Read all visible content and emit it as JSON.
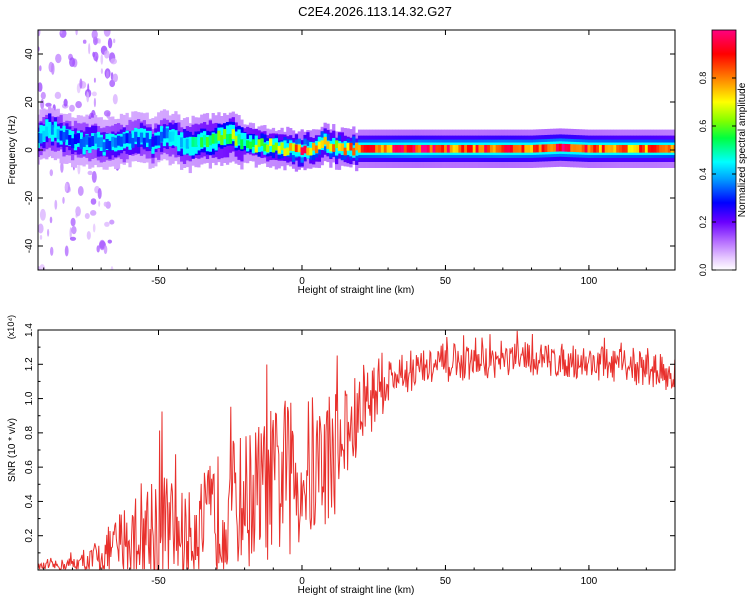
{
  "title": "C2E4.2026.113.14.32.G27",
  "chart_data": [
    {
      "type": "heatmap",
      "name": "spectrogram",
      "xlabel": "Height of straight line (km)",
      "ylabel": "Frequency (Hz)",
      "xlim": [
        -92,
        130
      ],
      "ylim": [
        -50,
        50
      ],
      "x_ticks": [
        -50,
        0,
        50,
        100
      ],
      "y_ticks": [
        40,
        20,
        0,
        -20,
        -40
      ],
      "y_tick_labels": [
        "40",
        "20",
        "0",
        "-20",
        "-40"
      ],
      "colorbar": {
        "label": "Normalized spectral amplitude",
        "range": [
          0,
          1
        ],
        "ticks": [
          0.0,
          0.2,
          0.4,
          0.6,
          0.8
        ],
        "tick_labels": [
          "0.0",
          "0.2",
          "0.4",
          "0.6",
          "0.8"
        ]
      },
      "ridge_x": [
        -92,
        -88,
        -84,
        -80,
        -76,
        -72,
        -68,
        -64,
        -60,
        -56,
        -52,
        -48,
        -44,
        -40,
        -36,
        -32,
        -28,
        -24,
        -20,
        -16,
        -12,
        -8,
        -4,
        0,
        4,
        8,
        12,
        16,
        20,
        30,
        40,
        50,
        60,
        70,
        80,
        90,
        100,
        110,
        120,
        130
      ],
      "ridge_freq": [
        5,
        9,
        6,
        4,
        3,
        4,
        2,
        3,
        4,
        5,
        3,
        6,
        5,
        2,
        3,
        4,
        5,
        6,
        3,
        2,
        2,
        1,
        0,
        0,
        1,
        3,
        1,
        0.5,
        0.5,
        0.5,
        0.5,
        0.5,
        0.5,
        0.5,
        0.5,
        1,
        0.5,
        0.5,
        0.5,
        0.5
      ],
      "ridge_amplitude": [
        0.3,
        0.45,
        0.35,
        0.3,
        0.3,
        0.35,
        0.3,
        0.35,
        0.3,
        0.35,
        0.3,
        0.35,
        0.4,
        0.45,
        0.5,
        0.55,
        0.55,
        0.6,
        0.55,
        0.6,
        0.6,
        0.65,
        0.75,
        0.9,
        0.7,
        0.8,
        0.7,
        0.75,
        0.8,
        0.85,
        0.9,
        0.85,
        0.85,
        0.9,
        0.85,
        0.9,
        0.85,
        0.8,
        0.8,
        0.75
      ]
    },
    {
      "type": "line",
      "name": "snr",
      "xlabel": "Height of straight line (km)",
      "ylabel": "SNR (10 * v/v)",
      "scale_label": "(x10⁴)",
      "xlim": [
        -92,
        130
      ],
      "ylim": [
        0,
        1.4
      ],
      "x_ticks": [
        -50,
        0,
        50,
        100
      ],
      "y_ticks": [
        0.2,
        0.4,
        0.6,
        0.8,
        1.0,
        1.2,
        1.4
      ],
      "y_tick_labels": [
        "0.2",
        "0.4",
        "0.6",
        "0.8",
        "1.0",
        "1.2",
        "1.4"
      ],
      "color": "#e8302c",
      "envelope_x": [
        -92,
        -85,
        -75,
        -70,
        -65,
        -60,
        -55,
        -50,
        -45,
        -40,
        -35,
        -30,
        -25,
        -20,
        -15,
        -10,
        -5,
        0,
        5,
        10,
        15,
        20,
        25,
        30,
        35,
        40,
        50,
        60,
        70,
        80,
        90,
        100,
        110,
        120,
        130
      ],
      "envelope_mean": [
        0.02,
        0.03,
        0.05,
        0.08,
        0.14,
        0.2,
        0.24,
        0.28,
        0.26,
        0.22,
        0.28,
        0.36,
        0.42,
        0.45,
        0.5,
        0.55,
        0.58,
        0.6,
        0.64,
        0.72,
        0.8,
        0.92,
        1.05,
        1.12,
        1.15,
        1.18,
        1.2,
        1.22,
        1.23,
        1.24,
        1.23,
        1.22,
        1.2,
        1.18,
        1.15
      ],
      "envelope_spread": [
        0.02,
        0.03,
        0.06,
        0.12,
        0.2,
        0.28,
        0.35,
        0.45,
        0.3,
        0.25,
        0.3,
        0.35,
        0.38,
        0.4,
        0.42,
        0.45,
        0.45,
        0.45,
        0.45,
        0.4,
        0.35,
        0.25,
        0.2,
        0.15,
        0.12,
        0.12,
        0.1,
        0.1,
        0.1,
        0.1,
        0.1,
        0.1,
        0.1,
        0.1,
        0.1
      ]
    }
  ]
}
